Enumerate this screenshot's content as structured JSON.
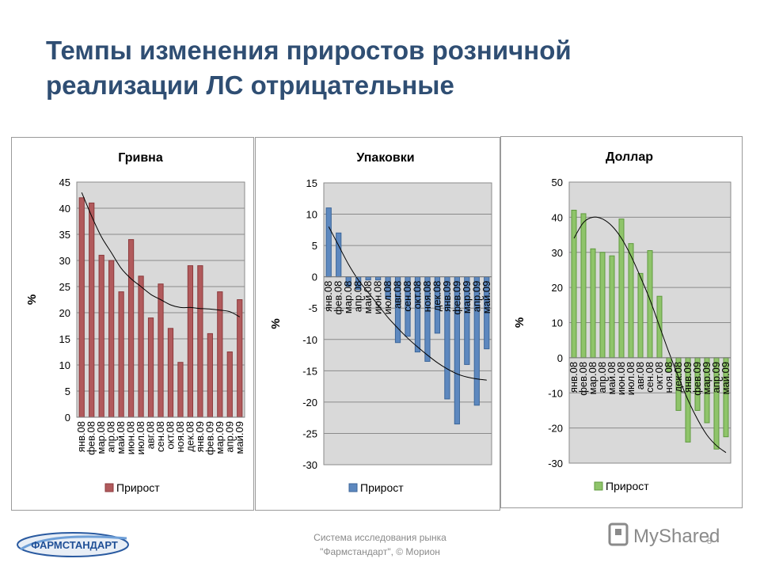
{
  "slide": {
    "title_line1": "Темпы изменения приростов розничной",
    "title_line2": "реализации ЛС отрицательные",
    "footer_line1": "Система исследования рынка",
    "footer_line2": "\"Фармстандарт\", © Морион",
    "page_number": "8",
    "logo_left_text": "ФАРМСТАНДАРТ",
    "logo_right_text": "MyShared"
  },
  "chart_data": [
    {
      "type": "bar",
      "title": "Гривна",
      "ylabel": "%",
      "legend": "Прирост",
      "legend_position": "bottom-left",
      "color": "#b15a5c",
      "border": "#8c3a3c",
      "ylim": [
        0,
        45
      ],
      "yticks": [
        0,
        5,
        10,
        15,
        20,
        25,
        30,
        35,
        40,
        45
      ],
      "categories": [
        "янв.08",
        "фев.08",
        "мар.08",
        "апр.08",
        "май.08",
        "июн.08",
        "июл.08",
        "авг.08",
        "сен.08",
        "окт.08",
        "ноя.08",
        "дек.08",
        "янв.09",
        "фев.09",
        "мар.09",
        "апр.09",
        "май.09"
      ],
      "values": [
        42,
        41,
        31,
        30,
        24,
        34,
        27,
        19,
        25.5,
        17,
        10.5,
        29,
        29,
        16,
        24,
        12.5,
        22.5
      ],
      "trend": [
        43,
        38.5,
        34.5,
        31.5,
        28.5,
        26.5,
        25,
        23.5,
        22.5,
        21.5,
        21,
        21,
        20.8,
        20.7,
        20.5,
        20.2,
        19.2
      ],
      "grid": true
    },
    {
      "type": "bar",
      "title": "Упаковки",
      "ylabel": "%",
      "legend": "Прирост",
      "legend_position": "bottom-left",
      "color": "#5d88bf",
      "border": "#3c6699",
      "ylim": [
        -30,
        15
      ],
      "yticks": [
        -30,
        -25,
        -20,
        -15,
        -10,
        -5,
        0,
        5,
        10,
        15
      ],
      "categories": [
        "янв.08",
        "фев.08",
        "мар.08",
        "апр.08",
        "май.08",
        "июн.08",
        "июл.08",
        "авг.08",
        "сен.08",
        "окт.08",
        "ноя.08",
        "дек.08",
        "янв.09",
        "фев.09",
        "мар.09",
        "апр.09",
        "май.09"
      ],
      "values": [
        11,
        7,
        -1.5,
        -2,
        -0.5,
        -0.5,
        -3.5,
        -10.5,
        -9.5,
        -12,
        -13.5,
        -9,
        -19.5,
        -23.5,
        -14,
        -20.5,
        -11.5
      ],
      "trend": [
        8,
        5,
        2,
        -0.5,
        -2.5,
        -4.5,
        -6.5,
        -8.2,
        -9.8,
        -11.2,
        -12.5,
        -13.7,
        -14.7,
        -15.5,
        -16,
        -16.3,
        -16.5
      ],
      "grid": true
    },
    {
      "type": "bar",
      "title": "Доллар",
      "ylabel": "%",
      "legend": "Прирост",
      "legend_position": "bottom-left",
      "color": "#8fc46a",
      "border": "#5f9a3e",
      "ylim": [
        -30,
        50
      ],
      "yticks": [
        -30,
        -20,
        -10,
        0,
        10,
        20,
        30,
        40,
        50
      ],
      "categories": [
        "янв.08",
        "фев.08",
        "мар.08",
        "апр.08",
        "май.08",
        "июн.08",
        "июл.08",
        "авг.08",
        "сен.08",
        "окт.08",
        "ноя.08",
        "дек.08",
        "янв.09",
        "фев.09",
        "мар.09",
        "апр.09",
        "май.09"
      ],
      "values": [
        42,
        41,
        31,
        30,
        29,
        39.5,
        32.5,
        24,
        30.5,
        17.5,
        -4,
        -15,
        -24,
        -15,
        -18.5,
        -26,
        -22.5
      ],
      "trend": [
        34,
        38.5,
        40,
        39.5,
        37.5,
        34,
        29,
        23,
        16.5,
        9,
        1.5,
        -5.5,
        -12,
        -17.5,
        -22,
        -25,
        -27
      ],
      "grid": true
    }
  ]
}
